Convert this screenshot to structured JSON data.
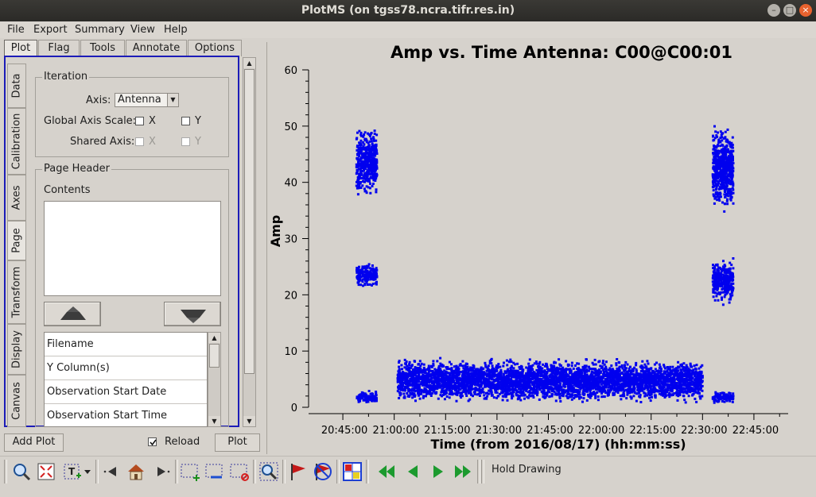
{
  "window": {
    "title": "PlotMS (on tgss78.ncra.tifr.res.in)"
  },
  "menu": {
    "items": [
      "File",
      "Export",
      "Summary",
      "View",
      "Help"
    ]
  },
  "tabs": [
    "Plot",
    "Flag",
    "Tools",
    "Annotate",
    "Options"
  ],
  "side_tabs": [
    "Data",
    "Calibration",
    "Axes",
    "Page",
    "Transform",
    "Display",
    "Canvas"
  ],
  "iteration": {
    "group_title": "Iteration",
    "axis_label": "Axis:",
    "axis_value": "Antenna",
    "global_label": "Global Axis Scale:",
    "shared_label": "Shared Axis:",
    "x_label": "X",
    "y_label": "Y"
  },
  "page_header": {
    "group_title": "Page Header",
    "contents_label": "Contents",
    "list_items": [
      "Filename",
      "Y Column(s)",
      "Observation Start Date",
      "Observation Start Time"
    ]
  },
  "bottom_controls": {
    "add_plot": "Add Plot",
    "reload": "Reload",
    "plot": "Plot"
  },
  "toolbar": {
    "hold_drawing": "Hold Drawing",
    "icons": [
      "zoom-icon",
      "zoom-reset-icon",
      "annotate-text-icon",
      "dropdown-icon",
      "prev-icon",
      "home-icon",
      "next-icon",
      "select-add-icon",
      "select-subtract-icon",
      "select-clear-icon",
      "locate-icon",
      "flag-icon",
      "unflag-icon",
      "iteration-grid-icon",
      "first-page-icon",
      "prev-page-icon",
      "next-page-icon",
      "last-page-icon"
    ]
  },
  "colors": {
    "points": "#0000ee",
    "accent": "#1c1cb8"
  },
  "chart_data": {
    "type": "scatter",
    "title": "Amp vs. Time Antenna: C00@C00:01",
    "xlabel": "Time (from 2016/08/17) (hh:mm:ss)",
    "ylabel": "Amp",
    "x_ticklabels": [
      "20:45:00",
      "21:00:00",
      "21:15:00",
      "21:30:00",
      "21:45:00",
      "22:00:00",
      "22:15:00",
      "22:30:00",
      "22:45:00"
    ],
    "y_ticks": [
      0,
      10,
      20,
      30,
      40,
      50,
      60
    ],
    "xlim": [
      "20:35:00",
      "22:55:00"
    ],
    "ylim": [
      0,
      60
    ],
    "series_clusters": [
      {
        "x_range": [
          "20:49:00",
          "20:55:00"
        ],
        "y_range": [
          37,
          50
        ]
      },
      {
        "x_range": [
          "20:49:00",
          "20:55:00"
        ],
        "y_range": [
          21,
          26
        ]
      },
      {
        "x_range": [
          "20:49:00",
          "20:55:00"
        ],
        "y_range": [
          0.5,
          3
        ]
      },
      {
        "x_range": [
          "21:01:00",
          "22:30:00"
        ],
        "y_range": [
          0.5,
          9
        ]
      },
      {
        "x_range": [
          "22:33:00",
          "22:39:00"
        ],
        "y_range": [
          34,
          51
        ]
      },
      {
        "x_range": [
          "22:33:00",
          "22:39:00"
        ],
        "y_range": [
          18,
          27
        ]
      },
      {
        "x_range": [
          "22:33:00",
          "22:39:00"
        ],
        "y_range": [
          0.5,
          3
        ]
      }
    ]
  }
}
